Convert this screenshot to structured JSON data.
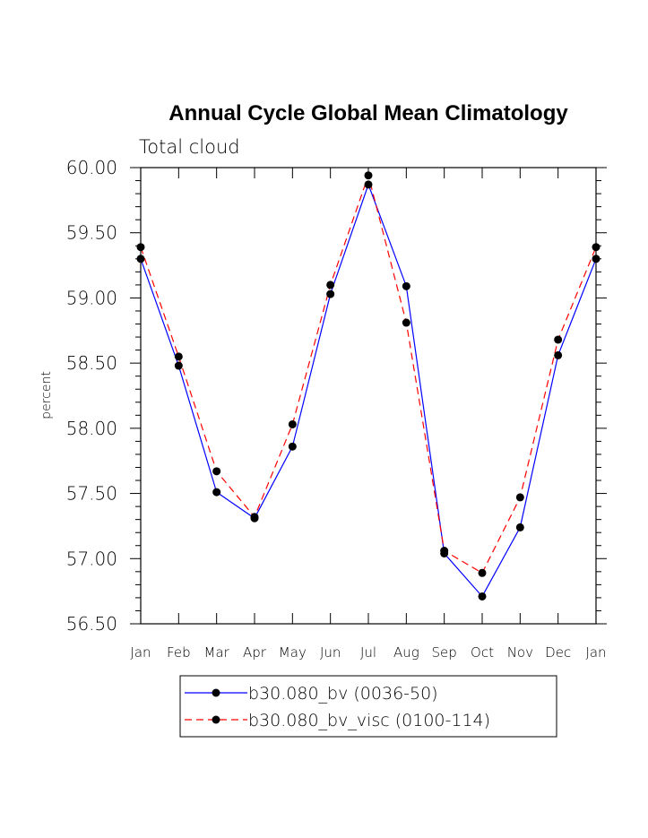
{
  "chart_data": {
    "type": "line",
    "title": "Annual Cycle Global Mean Climatology",
    "subtitle": "Total cloud",
    "xlabel": "",
    "ylabel": "percent",
    "categories": [
      "Jan",
      "Feb",
      "Mar",
      "Apr",
      "May",
      "Jun",
      "Jul",
      "Aug",
      "Sep",
      "Oct",
      "Nov",
      "Dec",
      "Jan"
    ],
    "ylim": [
      56.5,
      60.0
    ],
    "yticks": [
      "56.50",
      "57.00",
      "57.50",
      "58.00",
      "58.50",
      "59.00",
      "59.50",
      "60.00"
    ],
    "grid": false,
    "legend_position": "bottom",
    "series": [
      {
        "name": "b30.080_bv (0036-50)",
        "color": "#0000ff",
        "style": "solid",
        "values": [
          59.3,
          58.48,
          57.51,
          57.31,
          57.86,
          59.03,
          59.87,
          59.09,
          57.04,
          56.71,
          57.24,
          58.56,
          59.3
        ]
      },
      {
        "name": "b30.080_bv_visc (0100-114)",
        "color": "#ff0000",
        "style": "dashed",
        "values": [
          59.39,
          58.55,
          57.67,
          57.32,
          58.03,
          59.1,
          59.94,
          58.81,
          57.06,
          56.89,
          57.47,
          58.68,
          59.39
        ]
      }
    ]
  }
}
